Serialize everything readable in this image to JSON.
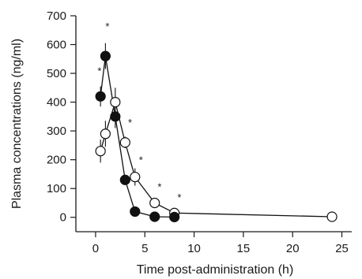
{
  "chart_data": {
    "type": "scatter",
    "xlabel": "Time post-administration (h)",
    "ylabel": "Plasma concentrations (ng/ml)",
    "xlim": [
      -2,
      26
    ],
    "ylim": [
      -50,
      700
    ],
    "xticks": [
      0,
      5,
      10,
      15,
      20,
      25
    ],
    "yticks": [
      0,
      100,
      200,
      300,
      400,
      500,
      600,
      700
    ],
    "xtick_labels": [
      "0",
      "5",
      "10",
      "15",
      "20",
      "25"
    ],
    "ytick_labels": [
      "0",
      "100",
      "200",
      "300",
      "400",
      "500",
      "600",
      "700"
    ],
    "grid": false,
    "series": [
      {
        "marker": "filled-circle",
        "color": "#111111",
        "points": [
          {
            "x": 0.5,
            "y": 420,
            "err": 35
          },
          {
            "x": 1,
            "y": 560,
            "err": 45
          },
          {
            "x": 2,
            "y": 350,
            "err": 40
          },
          {
            "x": 3,
            "y": 130,
            "err": 10
          },
          {
            "x": 4,
            "y": 20,
            "err": 5
          },
          {
            "x": 6,
            "y": 2,
            "err": 2
          },
          {
            "x": 8,
            "y": 1,
            "err": 1
          }
        ]
      },
      {
        "marker": "open-circle",
        "color": "#111111",
        "points": [
          {
            "x": 0.5,
            "y": 230,
            "err": 40
          },
          {
            "x": 1,
            "y": 290,
            "err": 45
          },
          {
            "x": 2,
            "y": 400,
            "err": 50
          },
          {
            "x": 3,
            "y": 260,
            "err": 20
          },
          {
            "x": 4,
            "y": 140,
            "err": 30
          },
          {
            "x": 6,
            "y": 50,
            "err": 15
          },
          {
            "x": 8,
            "y": 15,
            "err": 5
          },
          {
            "x": 24,
            "y": 2,
            "err": 0
          }
        ]
      }
    ],
    "annotations": [
      {
        "text": "*",
        "x": 0.4,
        "y": 510
      },
      {
        "text": "*",
        "x": 1.2,
        "y": 665
      },
      {
        "text": "*",
        "x": 3.5,
        "y": 330
      },
      {
        "text": "*",
        "x": 4.6,
        "y": 200
      },
      {
        "text": "*",
        "x": 6.5,
        "y": 108
      },
      {
        "text": "*",
        "x": 8.5,
        "y": 70
      }
    ]
  }
}
